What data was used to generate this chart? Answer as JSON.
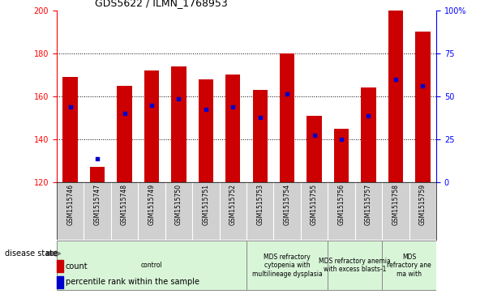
{
  "title": "GDS5622 / ILMN_1768953",
  "samples": [
    "GSM1515746",
    "GSM1515747",
    "GSM1515748",
    "GSM1515749",
    "GSM1515750",
    "GSM1515751",
    "GSM1515752",
    "GSM1515753",
    "GSM1515754",
    "GSM1515755",
    "GSM1515756",
    "GSM1515757",
    "GSM1515758",
    "GSM1515759"
  ],
  "counts": [
    169,
    127,
    165,
    172,
    174,
    168,
    170,
    163,
    180,
    151,
    145,
    164,
    200,
    190
  ],
  "percentile_ranks": [
    155,
    131,
    152,
    156,
    159,
    154,
    155,
    150,
    161,
    142,
    140,
    151,
    168,
    165
  ],
  "ylim_left": [
    120,
    200
  ],
  "ylim_right": [
    0,
    100
  ],
  "yticks_left": [
    120,
    140,
    160,
    180,
    200
  ],
  "yticks_right": [
    0,
    25,
    50,
    75,
    100
  ],
  "bar_color": "#CC0000",
  "dot_color": "#0000CC",
  "disease_groups": [
    {
      "label": "control",
      "start": 0,
      "end": 7
    },
    {
      "label": "MDS refractory\ncytopenia with\nmultilineage dysplasia",
      "start": 7,
      "end": 10
    },
    {
      "label": "MDS refractory anemia\nwith excess blasts-1",
      "start": 10,
      "end": 12
    },
    {
      "label": "MDS\nrefractory ane\nma with",
      "start": 12,
      "end": 14
    }
  ],
  "disease_group_color": "#d8f5d8",
  "xtick_bg_color": "#d0d0d0",
  "legend_count_label": "count",
  "legend_pct_label": "percentile rank within the sample",
  "disease_state_label": "disease state"
}
